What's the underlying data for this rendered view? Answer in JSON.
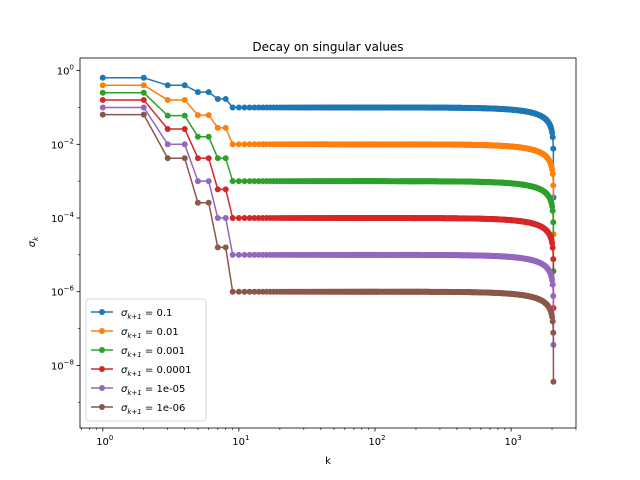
{
  "chart_data": {
    "type": "line",
    "title": "Decay on singular values",
    "xlabel": "k",
    "ylabel": "σ_k",
    "xscale": "log",
    "yscale": "log",
    "xlim": [
      0.68,
      3000
    ],
    "ylim": [
      2e-10,
      2.2
    ],
    "xticks": [
      {
        "value": 1,
        "base": "10",
        "exp": "0"
      },
      {
        "value": 10,
        "base": "10",
        "exp": "1"
      },
      {
        "value": 100,
        "base": "10",
        "exp": "2"
      },
      {
        "value": 1000,
        "base": "10",
        "exp": "3"
      }
    ],
    "yticks": [
      {
        "value": 1,
        "base": "10",
        "exp": "0"
      },
      {
        "value": 0.01,
        "base": "10",
        "exp": "−2"
      },
      {
        "value": 0.0001,
        "base": "10",
        "exp": "−4"
      },
      {
        "value": 1e-06,
        "base": "10",
        "exp": "−6"
      },
      {
        "value": 1e-08,
        "base": "10",
        "exp": "−8"
      }
    ],
    "grid": false,
    "legend_position": "lower-left",
    "n_points": 2048,
    "series": [
      {
        "name": "σ_{k+1} = 0.1",
        "legend_sub": "k+1",
        "legend_value": "0.1",
        "color": "#1f77b4",
        "head": [
          0.64,
          0.64,
          0.4,
          0.4,
          0.26,
          0.26,
          0.17,
          0.17
        ],
        "tail": 0.1
      },
      {
        "name": "σ_{k+1} = 0.01",
        "legend_sub": "k+1",
        "legend_value": "0.01",
        "color": "#ff7f0e",
        "head": [
          0.4,
          0.4,
          0.16,
          0.16,
          0.062,
          0.062,
          0.028,
          0.028
        ],
        "tail": 0.01
      },
      {
        "name": "σ_{k+1} = 0.001",
        "legend_sub": "k+1",
        "legend_value": "0.001",
        "color": "#2ca02c",
        "head": [
          0.25,
          0.25,
          0.06,
          0.06,
          0.016,
          0.016,
          0.0042,
          0.0042
        ],
        "tail": 0.001
      },
      {
        "name": "σ_{k+1} = 0.0001",
        "legend_sub": "k+1",
        "legend_value": "0.0001",
        "color": "#d62728",
        "head": [
          0.16,
          0.16,
          0.026,
          0.026,
          0.0042,
          0.0042,
          0.0006,
          0.0006
        ],
        "tail": 0.0001
      },
      {
        "name": "σ_{k+1} = 1e-05",
        "legend_sub": "k+1",
        "legend_value": "1e-05",
        "color": "#9467bd",
        "head": [
          0.1,
          0.1,
          0.01,
          0.01,
          0.001,
          0.001,
          0.0001,
          0.0001
        ],
        "tail": 1e-05
      },
      {
        "name": "σ_{k+1} = 1e-06",
        "legend_sub": "k+1",
        "legend_value": "1e-06",
        "color": "#8c564b",
        "head": [
          0.064,
          0.064,
          0.0042,
          0.0042,
          0.00026,
          0.00026,
          1.6e-05,
          1.6e-05
        ],
        "tail": 1e-06
      }
    ]
  }
}
